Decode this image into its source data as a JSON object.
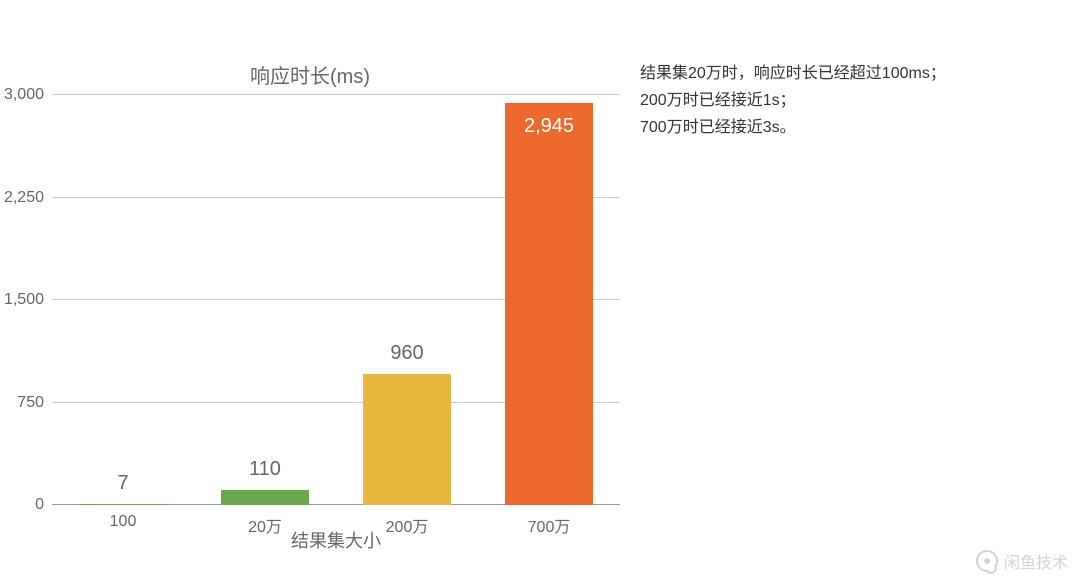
{
  "chart": {
    "type": "bar",
    "title": "响应时长(ms)",
    "x_axis_title": "结果集大小",
    "categories": [
      "100",
      "20万",
      "200万",
      "700万"
    ],
    "values": [
      7,
      110,
      960,
      2945
    ],
    "value_labels": [
      "7",
      "110",
      "960",
      "2,945"
    ],
    "value_label_positions": [
      "above",
      "above",
      "above",
      "inside"
    ],
    "bar_colors": [
      "#6aa84f",
      "#6aa84f",
      "#e8b73f",
      "#ec6a2d"
    ],
    "ylim": [
      0,
      3000
    ],
    "yticks": [
      0,
      750,
      1500,
      2250,
      3000
    ],
    "ytick_labels": [
      "0",
      "750",
      "1,500",
      "2,250",
      "3,000"
    ],
    "bar_width_pct": 78,
    "title_fontsize": 20,
    "label_fontsize": 20,
    "tick_fontsize": 16,
    "axis_title_fontsize": 18,
    "text_color": "#666666",
    "inside_label_color": "#ffffff",
    "gridline_color": "#cccccc",
    "baseline_color": "#999999",
    "background_color": "#ffffff"
  },
  "notes": {
    "lines": [
      "结果集20万时，响应时长已经超过100ms；",
      "200万时已经接近1s；",
      "700万时已经接近3s。"
    ],
    "fontsize": 16,
    "color": "#333333"
  },
  "watermark": {
    "text": "闲鱼技术",
    "color": "#c8c8c8"
  }
}
